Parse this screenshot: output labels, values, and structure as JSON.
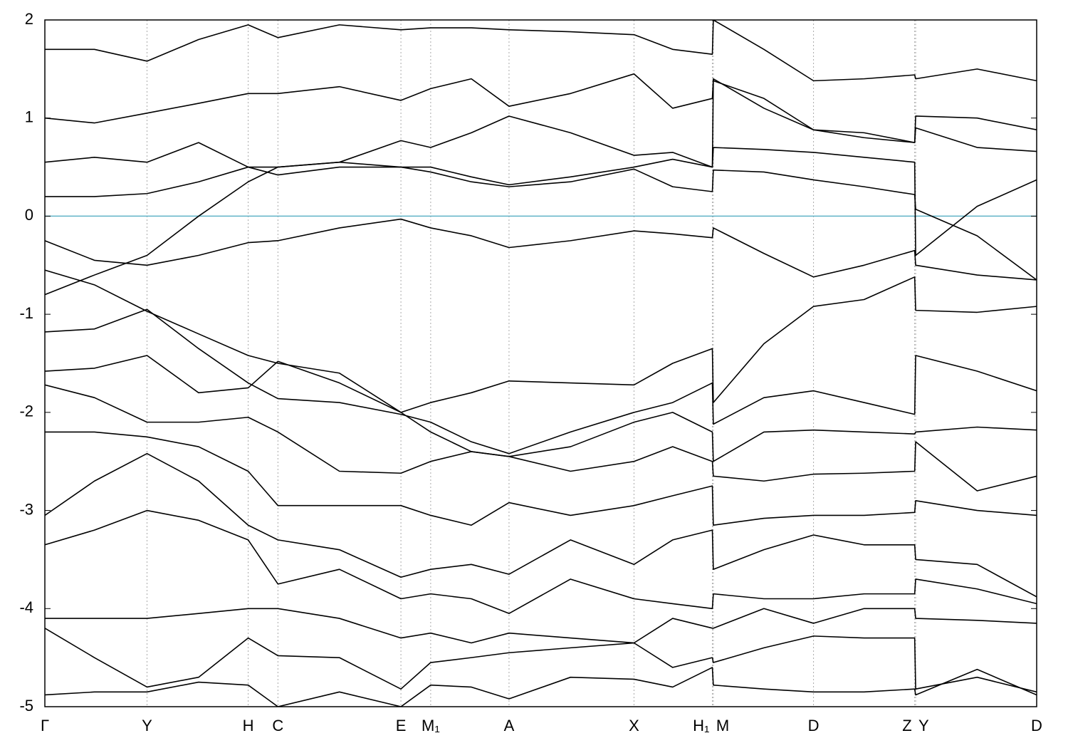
{
  "chart_data": {
    "type": "line",
    "x": [
      0,
      0.05,
      0.103,
      0.155,
      0.205,
      0.235,
      0.297,
      0.359,
      0.389,
      0.43,
      0.468,
      0.53,
      0.594,
      0.633,
      0.673,
      0.674,
      0.725,
      0.775,
      0.826,
      0.877,
      0.878,
      0.94,
      1.0
    ],
    "xlim": [
      0,
      1.0
    ],
    "xticks": [
      {
        "value": 0,
        "label": "Γ"
      },
      {
        "value": 0.103,
        "label": "Y"
      },
      {
        "value": 0.205,
        "label": "H"
      },
      {
        "value": 0.235,
        "label": "C"
      },
      {
        "value": 0.359,
        "label": "E"
      },
      {
        "value": 0.389,
        "label": "M₁"
      },
      {
        "value": 0.468,
        "label": "A"
      },
      {
        "value": 0.594,
        "label": "X"
      },
      {
        "value": 0.673,
        "label": "H₁"
      },
      {
        "value": 0.674,
        "label": "M"
      },
      {
        "value": 0.775,
        "label": "D"
      },
      {
        "value": 0.877,
        "label": "Z"
      },
      {
        "value": 0.878,
        "label": "Y"
      },
      {
        "value": 1.0,
        "label": "D"
      }
    ],
    "ylim": [
      -5,
      2
    ],
    "yticks": [
      2,
      1,
      0,
      -1,
      -2,
      -3,
      -4,
      -5
    ],
    "grid": "x",
    "hline": {
      "value": 0,
      "color": "#5fb3c8"
    },
    "series": [
      {
        "color": "#000000",
        "values": [
          -0.25,
          -0.45,
          -0.5,
          -0.4,
          -0.27,
          -0.25,
          -0.12,
          -0.03,
          -0.12,
          -0.2,
          -0.32,
          -0.25,
          -0.15,
          -0.18,
          -0.22,
          -0.12,
          -0.38,
          -0.62,
          -0.5,
          -0.35,
          -0.5,
          -0.6,
          -0.65
        ]
      },
      {
        "color": "#000000",
        "values": [
          0.2,
          0.2,
          0.23,
          0.35,
          0.5,
          0.42,
          0.5,
          0.5,
          0.45,
          0.35,
          0.3,
          0.35,
          0.48,
          0.3,
          0.25,
          0.47,
          0.45,
          0.37,
          0.3,
          0.22,
          0.07,
          -0.2,
          -0.65
        ]
      },
      {
        "color": "#000000",
        "values": [
          -0.8,
          -0.6,
          -0.4,
          0.0,
          0.35,
          0.5,
          0.55,
          0.77,
          0.7,
          0.85,
          1.02,
          0.85,
          0.62,
          0.65,
          0.5,
          0.7,
          0.68,
          0.65,
          0.6,
          0.55,
          -0.4,
          0.1,
          0.37
        ]
      },
      {
        "color": "#000000",
        "values": [
          0.55,
          0.6,
          0.55,
          0.75,
          0.5,
          0.5,
          0.55,
          0.5,
          0.5,
          0.4,
          0.32,
          0.4,
          0.5,
          0.58,
          0.5,
          1.38,
          1.2,
          0.88,
          0.85,
          0.75,
          0.9,
          0.7,
          0.66
        ]
      },
      {
        "color": "#000000",
        "values": [
          1.0,
          0.95,
          1.05,
          1.15,
          1.25,
          1.25,
          1.32,
          1.18,
          1.3,
          1.4,
          1.12,
          1.25,
          1.45,
          1.1,
          1.2,
          1.4,
          1.1,
          0.88,
          0.8,
          0.75,
          1.02,
          1.0,
          0.88
        ]
      },
      {
        "color": "#000000",
        "values": [
          1.7,
          1.7,
          1.58,
          1.8,
          1.95,
          1.82,
          1.95,
          1.9,
          1.92,
          1.92,
          1.9,
          1.88,
          1.85,
          1.7,
          1.65,
          2.0,
          1.7,
          1.38,
          1.4,
          1.44,
          1.4,
          1.5,
          1.38
        ]
      },
      {
        "color": "#000000",
        "values": [
          -0.55,
          -0.7,
          -0.97,
          -1.2,
          -1.42,
          -1.5,
          -1.6,
          -2.0,
          -1.9,
          -1.8,
          -1.68,
          -1.7,
          -1.72,
          -1.5,
          -1.35,
          -1.9,
          -1.3,
          -0.92,
          -0.85,
          -0.62,
          -0.96,
          -0.98,
          -0.92
        ]
      },
      {
        "color": "#000000",
        "values": [
          -1.18,
          -1.15,
          -0.95,
          -1.35,
          -1.7,
          -1.86,
          -1.9,
          -2.02,
          -2.1,
          -2.3,
          -2.42,
          -2.2,
          -2.0,
          -1.9,
          -1.7,
          -2.12,
          -1.85,
          -1.78,
          -1.9,
          -2.02,
          -1.42,
          -1.58,
          -1.78
        ]
      },
      {
        "color": "#000000",
        "values": [
          -1.58,
          -1.55,
          -1.42,
          -1.8,
          -1.75,
          -1.48,
          -1.7,
          -2.0,
          -2.2,
          -2.4,
          -2.45,
          -2.35,
          -2.1,
          -2.0,
          -2.2,
          -2.5,
          -2.2,
          -2.18,
          -2.2,
          -2.22,
          -2.2,
          -2.15,
          -2.18
        ]
      },
      {
        "color": "#000000",
        "values": [
          -1.72,
          -1.85,
          -2.1,
          -2.1,
          -2.05,
          -2.2,
          -2.6,
          -2.62,
          -2.5,
          -2.4,
          -2.45,
          -2.6,
          -2.5,
          -2.35,
          -2.5,
          -2.65,
          -2.7,
          -2.63,
          -2.62,
          -2.6,
          -2.3,
          -2.8,
          -2.65
        ]
      },
      {
        "color": "#000000",
        "values": [
          -2.2,
          -2.2,
          -2.25,
          -2.35,
          -2.6,
          -2.95,
          -2.95,
          -2.95,
          -3.05,
          -3.15,
          -2.92,
          -3.05,
          -2.95,
          -2.85,
          -2.75,
          -3.15,
          -3.08,
          -3.05,
          -3.05,
          -3.02,
          -2.9,
          -3.0,
          -3.05
        ]
      },
      {
        "color": "#000000",
        "values": [
          -3.05,
          -2.7,
          -2.42,
          -2.7,
          -3.15,
          -3.3,
          -3.4,
          -3.68,
          -3.6,
          -3.55,
          -3.65,
          -3.3,
          -3.55,
          -3.3,
          -3.2,
          -3.6,
          -3.4,
          -3.25,
          -3.35,
          -3.35,
          -3.5,
          -3.55,
          -3.88
        ]
      },
      {
        "color": "#000000",
        "values": [
          -3.35,
          -3.2,
          -3.0,
          -3.1,
          -3.3,
          -3.75,
          -3.6,
          -3.9,
          -3.85,
          -3.9,
          -4.05,
          -3.7,
          -3.9,
          -3.95,
          -4.0,
          -3.85,
          -3.9,
          -3.9,
          -3.85,
          -3.85,
          -3.7,
          -3.8,
          -3.95
        ]
      },
      {
        "color": "#000000",
        "values": [
          -4.1,
          -4.1,
          -4.1,
          -4.05,
          -4.0,
          -4.0,
          -4.1,
          -4.3,
          -4.25,
          -4.35,
          -4.25,
          -4.3,
          -4.35,
          -4.1,
          -4.2,
          -4.2,
          -4.0,
          -4.15,
          -4.0,
          -4.0,
          -4.1,
          -4.12,
          -4.15
        ]
      },
      {
        "color": "#000000",
        "values": [
          -4.2,
          -4.5,
          -4.8,
          -4.7,
          -4.3,
          -4.48,
          -4.5,
          -4.82,
          -4.55,
          -4.5,
          -4.45,
          -4.4,
          -4.35,
          -4.6,
          -4.5,
          -4.55,
          -4.4,
          -4.28,
          -4.3,
          -4.3,
          -4.82,
          -4.7,
          -4.85
        ]
      },
      {
        "color": "#000000",
        "values": [
          -4.88,
          -4.85,
          -4.85,
          -4.75,
          -4.78,
          -5.0,
          -4.85,
          -5.0,
          -4.78,
          -4.8,
          -4.92,
          -4.7,
          -4.72,
          -4.8,
          -4.6,
          -4.78,
          -4.82,
          -4.85,
          -4.85,
          -4.82,
          -4.88,
          -4.62,
          -4.88
        ]
      }
    ]
  }
}
